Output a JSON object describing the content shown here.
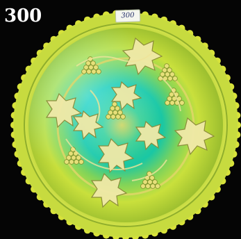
{
  "photo": {
    "subject_icon": "carnival-glass-plate-icon",
    "lot_number": "300",
    "sticker_text": "300"
  },
  "colors": {
    "background": "#000000",
    "rim": "#d7e23b",
    "iridescent_center": "#2fd59f",
    "lot_number_text": "#ffffff",
    "sticker_paper": "#f4f6ef",
    "sticker_ink": "#1f2a66"
  }
}
